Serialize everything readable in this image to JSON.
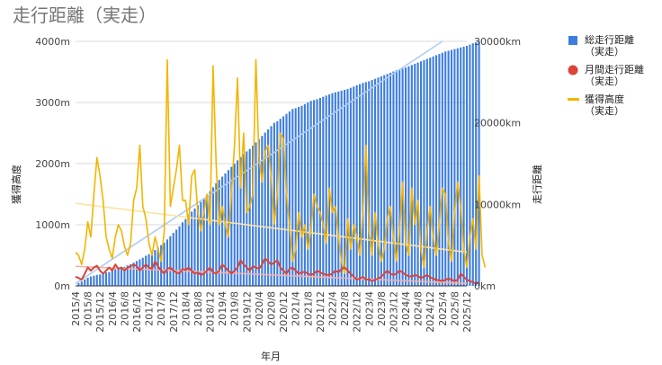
{
  "chart_data": {
    "type": "bar",
    "title": "走行距離（実走）",
    "xlabel": "年月",
    "ylabel_left": "獲得高度",
    "ylabel_right": "走行距離",
    "y_left": {
      "range": [
        0,
        4000
      ],
      "ticks": [
        "0m",
        "1000m",
        "2000m",
        "3000m",
        "4000m"
      ]
    },
    "y_right": {
      "range": [
        0,
        30000
      ],
      "ticks": [
        "0km",
        "10000km",
        "20000km",
        "30000km"
      ]
    },
    "x_range": [
      "2015/4",
      "2025/12"
    ],
    "x_ticks": [
      "2015/4",
      "2015/8",
      "2015/12",
      "2016/4",
      "2016/8",
      "2016/12",
      "2017/4",
      "2017/8",
      "2017/12",
      "2018/4",
      "2018/8",
      "2018/12",
      "2019/4",
      "2019/8",
      "2019/12",
      "2020/4",
      "2020/8",
      "2020/12",
      "2021/4",
      "2021/8",
      "2021/12",
      "2022/4",
      "2022/8",
      "2022/12",
      "2023/4",
      "2023/8",
      "2023/12",
      "2024/4",
      "2024/8",
      "2024/12",
      "2025/4",
      "2025/8",
      "2025/12"
    ],
    "grid": true,
    "legend_position": "right",
    "series": [
      {
        "name": "総走行距離\n（実走）",
        "type": "bar",
        "axis": "right",
        "color": "#3d7de0",
        "unit": "km",
        "start": "2015/4",
        "values": [
          0,
          350,
          550,
          800,
          1000,
          1150,
          1250,
          1350,
          1400,
          1500,
          1650,
          1700,
          1900,
          2050,
          2100,
          2250,
          2350,
          2500,
          2650,
          2850,
          3050,
          3250,
          3450,
          3700,
          3900,
          4100,
          4400,
          4700,
          5000,
          5300,
          5700,
          6100,
          6500,
          6900,
          7300,
          7800,
          8200,
          8700,
          9100,
          9500,
          9900,
          10300,
          10700,
          11100,
          11600,
          12100,
          12600,
          13000,
          13400,
          13800,
          14200,
          14600,
          15000,
          15400,
          15800,
          16200,
          16500,
          16800,
          17200,
          17600,
          18000,
          18400,
          18800,
          19200,
          19600,
          20000,
          20200,
          20500,
          20800,
          21100,
          21400,
          21700,
          21800,
          21950,
          22100,
          22300,
          22500,
          22700,
          22800,
          22900,
          23050,
          23200,
          23350,
          23500,
          23650,
          23750,
          23850,
          23950,
          24050,
          24150,
          24300,
          24450,
          24600,
          24750,
          24900,
          25000,
          25100,
          25250,
          25400,
          25550,
          25700,
          25850,
          26000,
          26150,
          26300,
          26450,
          26550,
          26650,
          26800,
          26950,
          27100,
          27250,
          27400,
          27550,
          27700,
          27850,
          28000,
          28150,
          28300,
          28450,
          28600,
          28750,
          28850,
          28950,
          29050,
          29150,
          29250,
          29350,
          29450,
          29600,
          29750,
          29900,
          30050
        ]
      },
      {
        "name": "月間走行距離\n（実走）",
        "type": "line",
        "axis": "left",
        "color": "#db4437",
        "unit": "m",
        "start": "2015/4",
        "values": [
          150,
          130,
          100,
          200,
          300,
          250,
          300,
          330,
          250,
          200,
          250,
          300,
          250,
          350,
          280,
          300,
          250,
          300,
          320,
          350,
          320,
          250,
          300,
          350,
          300,
          280,
          400,
          320,
          250,
          200,
          280,
          300,
          250,
          220,
          200,
          280,
          260,
          300,
          250,
          200,
          220,
          180,
          200,
          250,
          300,
          220,
          200,
          250,
          350,
          300,
          250,
          200,
          250,
          300,
          420,
          350,
          300,
          250,
          320,
          300,
          280,
          350,
          450,
          400,
          350,
          380,
          420,
          300,
          250,
          200,
          280,
          300,
          250,
          200,
          220,
          230,
          200,
          180,
          200,
          250,
          220,
          200,
          180,
          180,
          200,
          250,
          220,
          280,
          300,
          250,
          200,
          150,
          100,
          120,
          150,
          100,
          110,
          80,
          100,
          120,
          150,
          200,
          250,
          200,
          180,
          200,
          250,
          220,
          180,
          160,
          150,
          180,
          160,
          130,
          150,
          180,
          140,
          120,
          100,
          90,
          80,
          100,
          120,
          100,
          80,
          100,
          200,
          150,
          100,
          80,
          60,
          40,
          60
        ]
      },
      {
        "name": "獲得高度\n（実走）",
        "type": "line",
        "axis": "left",
        "color": "#f4b400",
        "unit": "m",
        "start": "2015/4",
        "values": [
          550,
          500,
          350,
          600,
          1050,
          800,
          1500,
          2100,
          1800,
          1400,
          800,
          600,
          450,
          800,
          1000,
          900,
          650,
          500,
          700,
          1400,
          1600,
          2300,
          1300,
          1100,
          700,
          500,
          800,
          600,
          400,
          900,
          3700,
          1300,
          1600,
          1900,
          2300,
          1400,
          1400,
          1000,
          1800,
          1900,
          1200,
          900,
          1200,
          1500,
          1000,
          3600,
          2000,
          1000,
          1300,
          1000,
          800,
          1500,
          2300,
          3400,
          1600,
          2500,
          1200,
          1300,
          1500,
          3700,
          2100,
          1700,
          2200,
          2300,
          1800,
          1000,
          1500,
          2500,
          2400,
          1500,
          1000,
          400,
          600,
          1200,
          800,
          1000,
          600,
          900,
          1500,
          1300,
          1200,
          1000,
          700,
          1600,
          1200,
          1300,
          800,
          400,
          200,
          1100,
          600,
          1000,
          800,
          500,
          1200,
          2300,
          900,
          500,
          1200,
          700,
          400,
          600,
          1100,
          1300,
          800,
          400,
          900,
          1700,
          700,
          500,
          1600,
          1000,
          1400,
          600,
          300,
          900,
          1300,
          800,
          500,
          1000,
          1600,
          1500,
          700,
          400,
          1200,
          1700,
          1300,
          600,
          300,
          800,
          1100,
          600,
          1800,
          500,
          300
        ]
      }
    ],
    "trendlines": [
      {
        "name": "総走行距離（実走）",
        "axis": "right",
        "color": "#aecbf7",
        "from": 300,
        "to": 30000,
        "start": "2015/4",
        "end": "2025/4"
      },
      {
        "name": "月間走行距離（実走）",
        "axis": "left",
        "color": "#f2b0aa",
        "from": 320,
        "to": 40,
        "start": "2015/4",
        "end": "2025/12"
      },
      {
        "name": "獲得高度（実走）",
        "axis": "left",
        "color": "#fbe3a3",
        "from": 1350,
        "to": 550,
        "start": "2015/4",
        "end": "2025/12"
      }
    ]
  }
}
